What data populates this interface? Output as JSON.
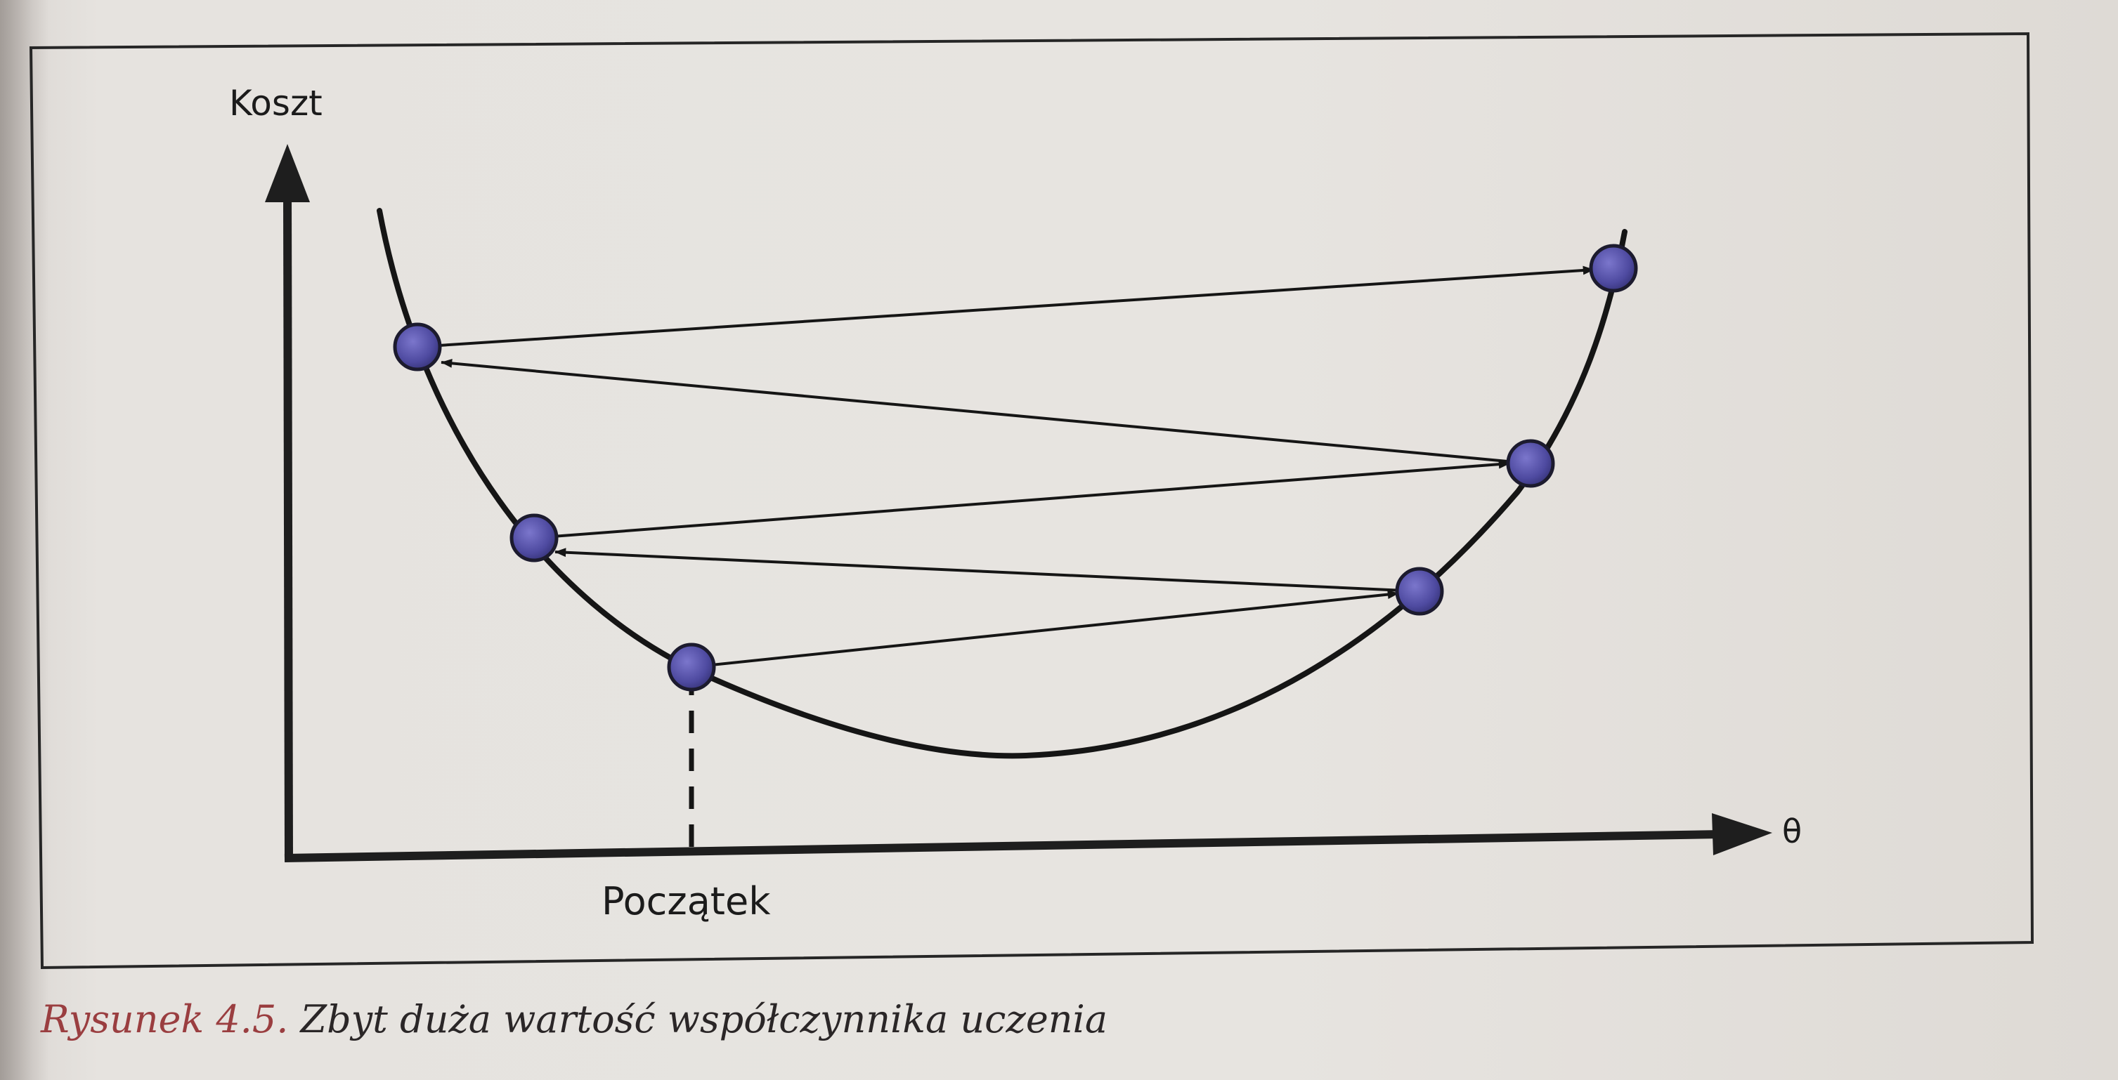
{
  "diagram": {
    "title": "Zbyt duża wartość współczynnika uczenia",
    "y_axis_label": "Koszt",
    "x_axis_label": "θ",
    "start_label": "Początek",
    "curve_color": "#151515",
    "point_color": "#5a55ab",
    "point_edge_color": "#1c1b2e",
    "arrow_color": "#151515",
    "points": [
      {
        "name": "start",
        "order": 1,
        "side": "left"
      },
      {
        "name": "step-1",
        "order": 2,
        "side": "right"
      },
      {
        "name": "step-2",
        "order": 3,
        "side": "left"
      },
      {
        "name": "step-3",
        "order": 4,
        "side": "right"
      },
      {
        "name": "step-4",
        "order": 5,
        "side": "left"
      },
      {
        "name": "step-5",
        "order": 6,
        "side": "right"
      }
    ]
  },
  "caption": {
    "number": "Rysunek 4.5.",
    "text": "Zbyt duża wartość współczynnika uczenia"
  }
}
